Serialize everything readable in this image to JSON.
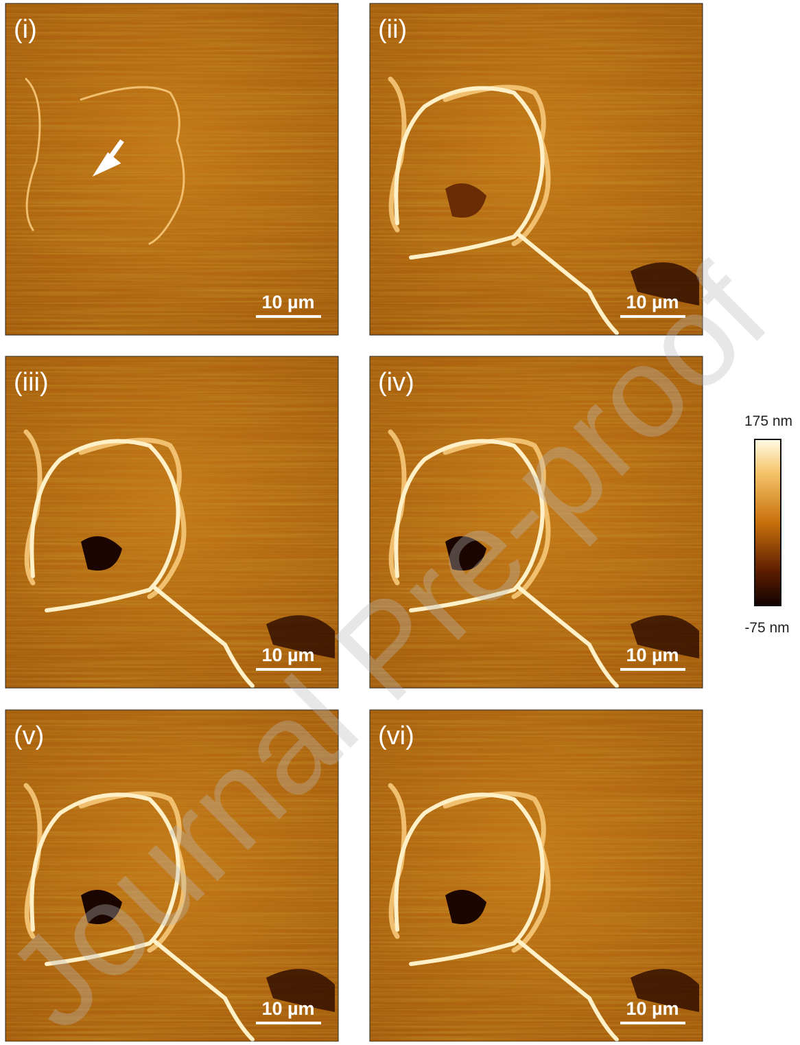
{
  "figure": {
    "panels": [
      {
        "label": "(i)",
        "scale_bar": "10 µm"
      },
      {
        "label": "(ii)",
        "scale_bar": "10 µm"
      },
      {
        "label": "(iii)",
        "scale_bar": "10 µm"
      },
      {
        "label": "(iv)",
        "scale_bar": "10 µm"
      },
      {
        "label": "(v)",
        "scale_bar": "10 µm"
      },
      {
        "label": "(vi)",
        "scale_bar": "10 µm"
      }
    ],
    "colorbar": {
      "max_label": "175 nm",
      "min_label": "-75 nm"
    },
    "watermark": "Journal Pre-proof"
  }
}
